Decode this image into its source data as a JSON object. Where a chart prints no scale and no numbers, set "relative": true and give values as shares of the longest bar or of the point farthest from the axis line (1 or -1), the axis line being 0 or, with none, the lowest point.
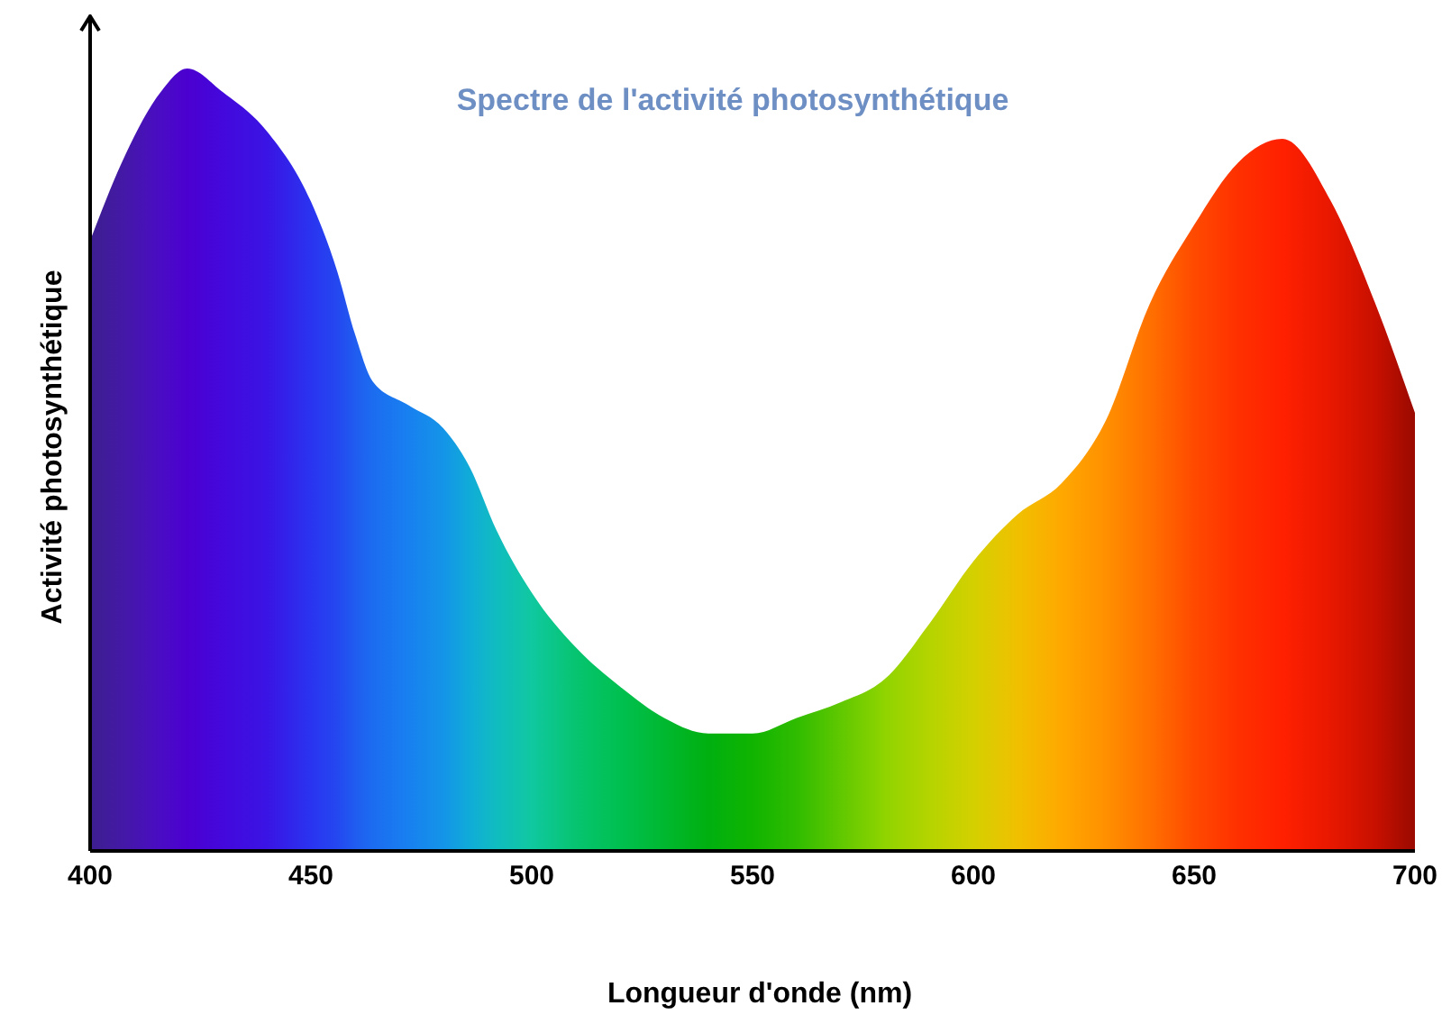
{
  "chart_data": {
    "type": "area",
    "title": "Spectre de l'activité photosynthétique",
    "xlabel": "Longueur d'onde (nm)",
    "ylabel": "Activité photosynthétique",
    "relative": true,
    "x": [
      400,
      408,
      416,
      422,
      430,
      440,
      450,
      456,
      460,
      464,
      472,
      480,
      486,
      492,
      500,
      510,
      520,
      530,
      540,
      550,
      560,
      570,
      580,
      590,
      600,
      610,
      620,
      630,
      640,
      650,
      660,
      670,
      681,
      691,
      700
    ],
    "values": [
      0.78,
      0.89,
      0.97,
      1,
      0.97,
      0.92,
      0.83,
      0.74,
      0.66,
      0.6,
      0.57,
      0.54,
      0.49,
      0.41,
      0.33,
      0.26,
      0.21,
      0.17,
      0.15,
      0.15,
      0.17,
      0.19,
      0.22,
      0.29,
      0.37,
      0.43,
      0.47,
      0.55,
      0.7,
      0.8,
      0.88,
      0.91,
      0.83,
      0.7,
      0.56
    ],
    "colors": [
      "#3d1f8f",
      "#4418a8",
      "#4a0cc4",
      "#4b00d0",
      "#4408dc",
      "#3a14e4",
      "#2a34f0",
      "#2448f0",
      "#205cf0",
      "#1c6cf0",
      "#1880f0",
      "#1494e8",
      "#10acd8",
      "#10bcc0",
      "#10c8a0",
      "#06c470",
      "#00c050",
      "#00b830",
      "#00b010",
      "#10b400",
      "#30bc00",
      "#60c800",
      "#90d400",
      "#b4d400",
      "#d4d000",
      "#f0c000",
      "#ffa800",
      "#ff9000",
      "#ff7000",
      "#ff4a00",
      "#ff3000",
      "#ff2000",
      "#e81800",
      "#c81000",
      "#9a0a00"
    ],
    "xlim": [
      400,
      700
    ],
    "xticks": [
      400,
      450,
      500,
      550,
      600,
      650,
      700
    ]
  }
}
